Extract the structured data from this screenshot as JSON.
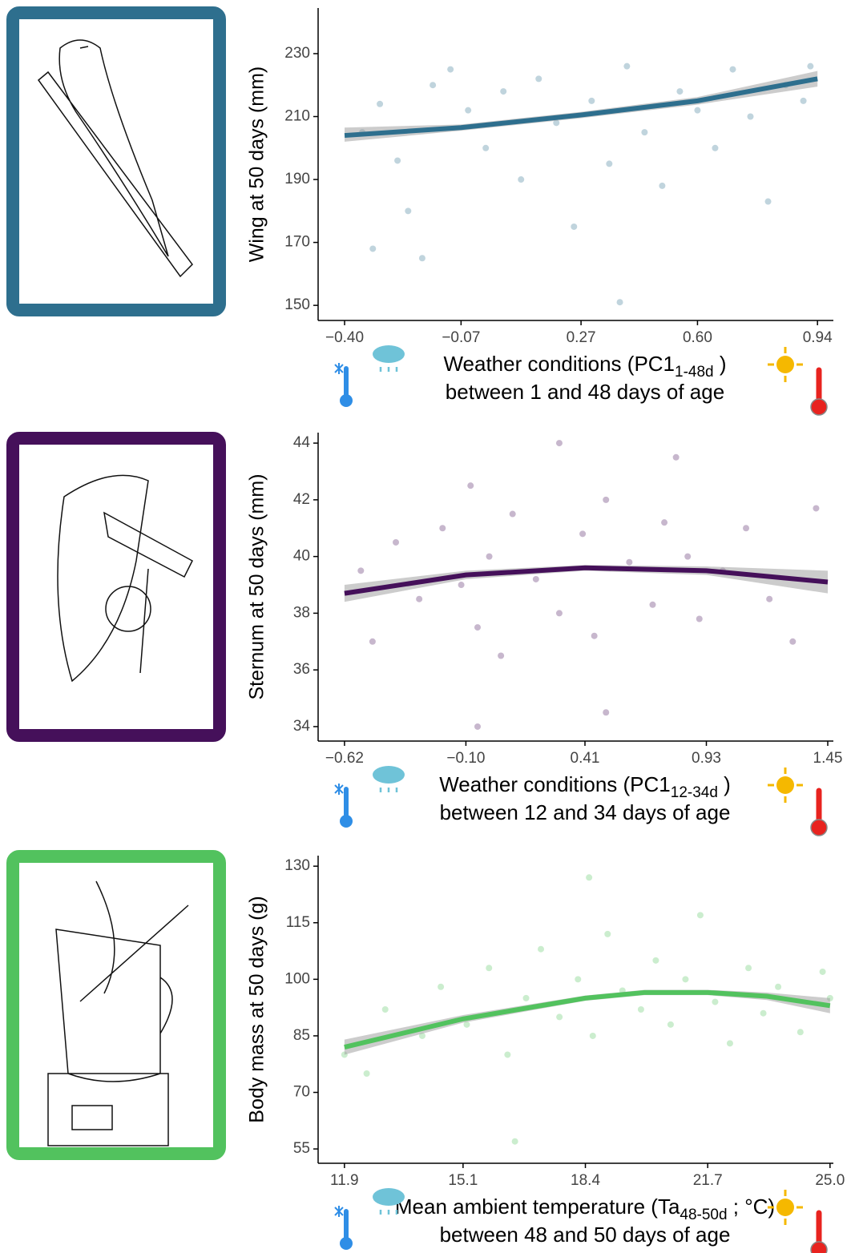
{
  "chart_data": [
    {
      "type": "scatter",
      "color": "#2e6f8e",
      "y_label": "Wing at 50 days (mm)",
      "x_label": "Weather conditions (PC1",
      "x_label_sub": "1-48d",
      "x_label_end": " )",
      "x_label_line2": "between 1 and 48 days of age",
      "xlim": [
        -0.475,
        0.985
      ],
      "ylim": [
        145.2,
        244.5
      ],
      "xticks": [
        {
          "value": -0.4,
          "label": "−0.40"
        },
        {
          "value": -0.07,
          "label": "−0.07"
        },
        0.27,
        {
          "value": 0.6,
          "label": "0.60"
        },
        0.94
      ],
      "yticks": [
        150,
        170,
        190,
        210,
        230
      ],
      "scatter": {
        "x": [
          -0.35,
          -0.3,
          -0.25,
          -0.22,
          -0.18,
          -0.15,
          -0.1,
          -0.05,
          0.0,
          0.05,
          0.1,
          0.15,
          0.2,
          0.25,
          0.3,
          0.35,
          0.4,
          0.45,
          0.5,
          0.55,
          0.6,
          0.65,
          0.7,
          0.75,
          0.8,
          0.85,
          0.9,
          0.92,
          -0.32,
          0.38
        ],
        "y": [
          205,
          214,
          196,
          180,
          165,
          220,
          225,
          212,
          200,
          218,
          190,
          222,
          208,
          175,
          215,
          195,
          226,
          205,
          188,
          218,
          212,
          200,
          225,
          210,
          183,
          220,
          215,
          226,
          168,
          151
        ]
      },
      "fit": {
        "x": [
          -0.4,
          -0.07,
          0.27,
          0.6,
          0.94
        ],
        "y": [
          204,
          206.5,
          210.5,
          215,
          222
        ],
        "lower": [
          202,
          205.5,
          209.5,
          213.8,
          219.5
        ],
        "upper": [
          206.5,
          207.5,
          211.5,
          216.2,
          224.5
        ]
      }
    },
    {
      "type": "scatter",
      "color": "#45105a",
      "y_label": "Sternum at 50 days (mm)",
      "x_label": "Weather conditions (PC1",
      "x_label_sub": "12-34d",
      "x_label_end": " )",
      "x_label_line2": "between 12 and 34 days of age",
      "xlim": [
        -0.733,
        1.474
      ],
      "ylim": [
        33.49,
        44.37
      ],
      "xticks": [
        {
          "value": -0.62,
          "label": "−0.62"
        },
        {
          "value": -0.1,
          "label": "−0.10"
        },
        0.41,
        0.93,
        1.45
      ],
      "yticks": [
        34,
        36,
        38,
        40,
        42,
        44
      ],
      "scatter": {
        "x": [
          -0.55,
          -0.5,
          -0.4,
          -0.3,
          -0.2,
          -0.12,
          -0.08,
          -0.05,
          0.0,
          0.05,
          0.1,
          0.2,
          0.3,
          0.4,
          0.45,
          0.5,
          0.6,
          0.7,
          0.75,
          0.85,
          0.9,
          1.0,
          1.1,
          1.2,
          1.3,
          1.4,
          -0.05,
          0.5,
          0.8,
          0.3
        ],
        "y": [
          39.5,
          37,
          40.5,
          38.5,
          41,
          39,
          42.5,
          37.5,
          40,
          36.5,
          41.5,
          39.2,
          38,
          40.8,
          37.2,
          42,
          39.8,
          38.3,
          41.2,
          40,
          37.8,
          39.5,
          41,
          38.5,
          37,
          41.7,
          34,
          34.5,
          43.5,
          44
        ]
      },
      "fit": {
        "x": [
          -0.62,
          -0.1,
          0.41,
          0.93,
          1.45
        ],
        "y": [
          38.7,
          39.35,
          39.6,
          39.5,
          39.1
        ],
        "lower": [
          38.4,
          39.2,
          39.5,
          39.35,
          38.7
        ],
        "upper": [
          39.0,
          39.5,
          39.7,
          39.65,
          39.5
        ]
      }
    },
    {
      "type": "scatter",
      "color": "#52c25e",
      "y_label": "Body mass at 50 days (g)",
      "x_label": "Mean ambient temperature (Ta",
      "x_label_sub": "48-50d",
      "x_label_end": " ; °C)",
      "x_label_line2": "between 48 and 50 days of age",
      "xlim": [
        11.19,
        25.09
      ],
      "ylim": [
        51.2,
        132.8
      ],
      "xticks": [
        11.9,
        15.1,
        18.4,
        21.7,
        {
          "value": 25.0,
          "label": "25.0"
        }
      ],
      "yticks": [
        55,
        70,
        85,
        100,
        115,
        130
      ],
      "scatter": {
        "x": [
          11.9,
          12.5,
          13,
          14,
          14.5,
          15.2,
          15.8,
          16.3,
          16.8,
          17.2,
          17.7,
          18.2,
          18.6,
          19,
          19.4,
          19.9,
          20.3,
          20.7,
          21.1,
          21.5,
          21.9,
          22.3,
          22.8,
          23.2,
          23.6,
          24.2,
          24.8,
          25.0,
          18.5,
          16.5
        ],
        "y": [
          80,
          75,
          92,
          85,
          98,
          88,
          103,
          80,
          95,
          108,
          90,
          100,
          85,
          112,
          97,
          92,
          105,
          88,
          100,
          117,
          94,
          83,
          103,
          91,
          98,
          86,
          102,
          95,
          127,
          57
        ]
      },
      "fit": {
        "x": [
          11.9,
          15.1,
          18.4,
          20,
          21.7,
          23.3,
          25.0
        ],
        "y": [
          82,
          89.5,
          95,
          96.5,
          96.5,
          95.5,
          93
        ],
        "lower": [
          80,
          88.5,
          94.3,
          95.8,
          95.8,
          94.5,
          91
        ],
        "upper": [
          84,
          90.5,
          95.7,
          97.2,
          97.2,
          96.5,
          95
        ]
      }
    }
  ]
}
